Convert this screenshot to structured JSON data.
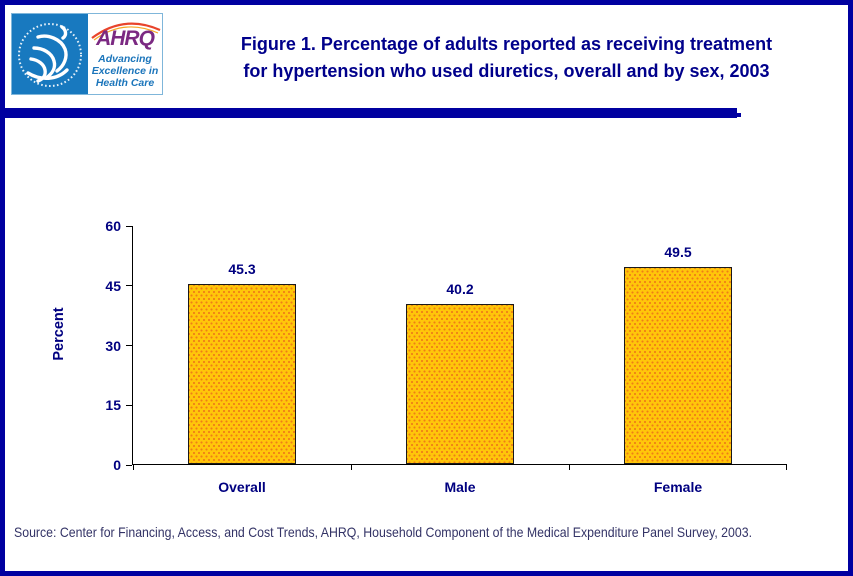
{
  "header": {
    "logo": {
      "ahrq_acronym": "AHRQ",
      "tagline": "Advancing Excellence in Health Care"
    },
    "title_line1": "Figure 1. Percentage of adults reported as receiving treatment",
    "title_line2": "for hypertension who used diuretics, overall and by sex, 2003"
  },
  "chart_data": {
    "type": "bar",
    "title": "Figure 1. Percentage of adults reported as receiving treatment for hypertension who used diuretics, overall and by sex, 2003",
    "categories": [
      "Overall",
      "Male",
      "Female"
    ],
    "values": [
      45.3,
      40.2,
      49.5
    ],
    "value_labels": [
      "45.3",
      "40.2",
      "49.5"
    ],
    "xlabel": "",
    "ylabel": "Percent",
    "ylim": [
      0,
      60
    ],
    "yticks": [
      0,
      15,
      30,
      45,
      60
    ],
    "grid": false,
    "legend": false,
    "colors": {
      "bar_fill": "#FFC60A",
      "bar_dots": "#EF7D17",
      "bar_border": "#1A1A1A",
      "labels": "#000080",
      "title": "#00008B",
      "accent_rule": "#0000A0",
      "page_border": "#0000A0",
      "hhs_logo_blue": "#1879BF",
      "ahrq_purple": "#7B2982",
      "ahrq_blue": "#1B75BB"
    }
  },
  "footer": {
    "source": "Source: Center for Financing, Access, and Cost Trends, AHRQ, Household Component of the Medical Expenditure Panel Survey, 2003."
  }
}
